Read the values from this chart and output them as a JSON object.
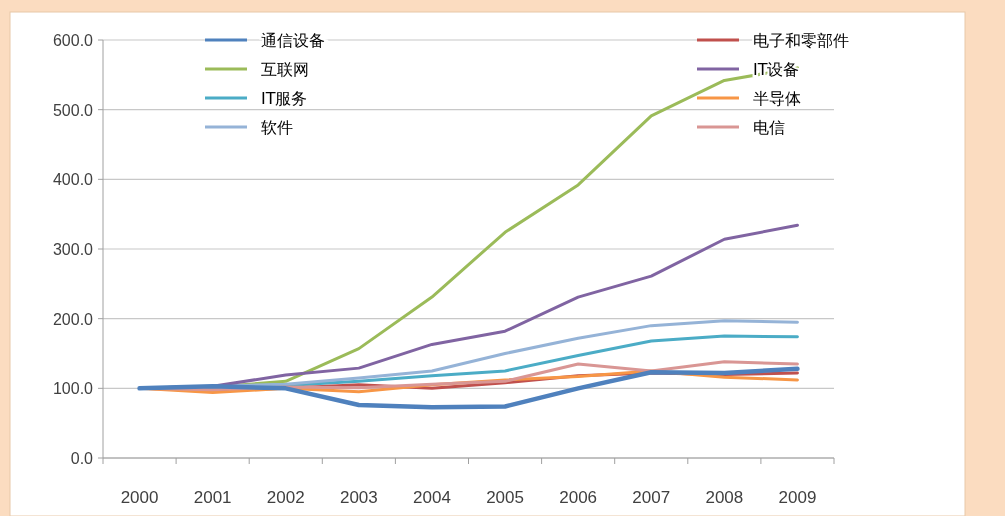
{
  "chart_data": {
    "type": "line",
    "categories": [
      "2000",
      "2001",
      "2002",
      "2003",
      "2004",
      "2005",
      "2006",
      "2007",
      "2008",
      "2009"
    ],
    "ylim": [
      0,
      600
    ],
    "yticks": [
      {
        "value": 0,
        "label": "0.0"
      },
      {
        "value": 100,
        "label": "100.0"
      },
      {
        "value": 200,
        "label": "200.0"
      },
      {
        "value": 300,
        "label": "300.0"
      },
      {
        "value": 400,
        "label": "400.0"
      },
      {
        "value": 500,
        "label": "500.0"
      },
      {
        "value": 600,
        "label": "600.0"
      }
    ],
    "grid": "y",
    "legend": "top",
    "marker": "none",
    "line_style": "solid",
    "series": [
      {
        "name": "通信设备",
        "color": "#4f81bd",
        "values": [
          100,
          103,
          100,
          76,
          73,
          74,
          100,
          123,
          122,
          128
        ]
      },
      {
        "name": "互联网",
        "color": "#9bbb59",
        "values": [
          100,
          102,
          110,
          157,
          231,
          324,
          392,
          491,
          542,
          560
        ]
      },
      {
        "name": "IT服务",
        "color": "#4bacc6",
        "values": [
          100,
          102,
          104,
          110,
          118,
          125,
          147,
          168,
          175,
          174
        ]
      },
      {
        "name": "软件",
        "color": "#95b3d7",
        "values": [
          100,
          103,
          106,
          115,
          125,
          150,
          172,
          190,
          197,
          195
        ]
      },
      {
        "name": "电子和零部件",
        "color": "#c0504d",
        "values": [
          100,
          97,
          100,
          105,
          100,
          108,
          118,
          122,
          120,
          122
        ]
      },
      {
        "name": "IT设备",
        "color": "#8064a2",
        "values": [
          100,
          103,
          119,
          129,
          163,
          182,
          231,
          261,
          314,
          334
        ]
      },
      {
        "name": "半导体",
        "color": "#f79646",
        "values": [
          100,
          94,
          100,
          95,
          105,
          112,
          117,
          125,
          116,
          112
        ]
      },
      {
        "name": "电信",
        "color": "#d99694",
        "values": [
          100,
          98,
          102,
          101,
          106,
          110,
          135,
          125,
          138,
          135
        ]
      }
    ]
  }
}
